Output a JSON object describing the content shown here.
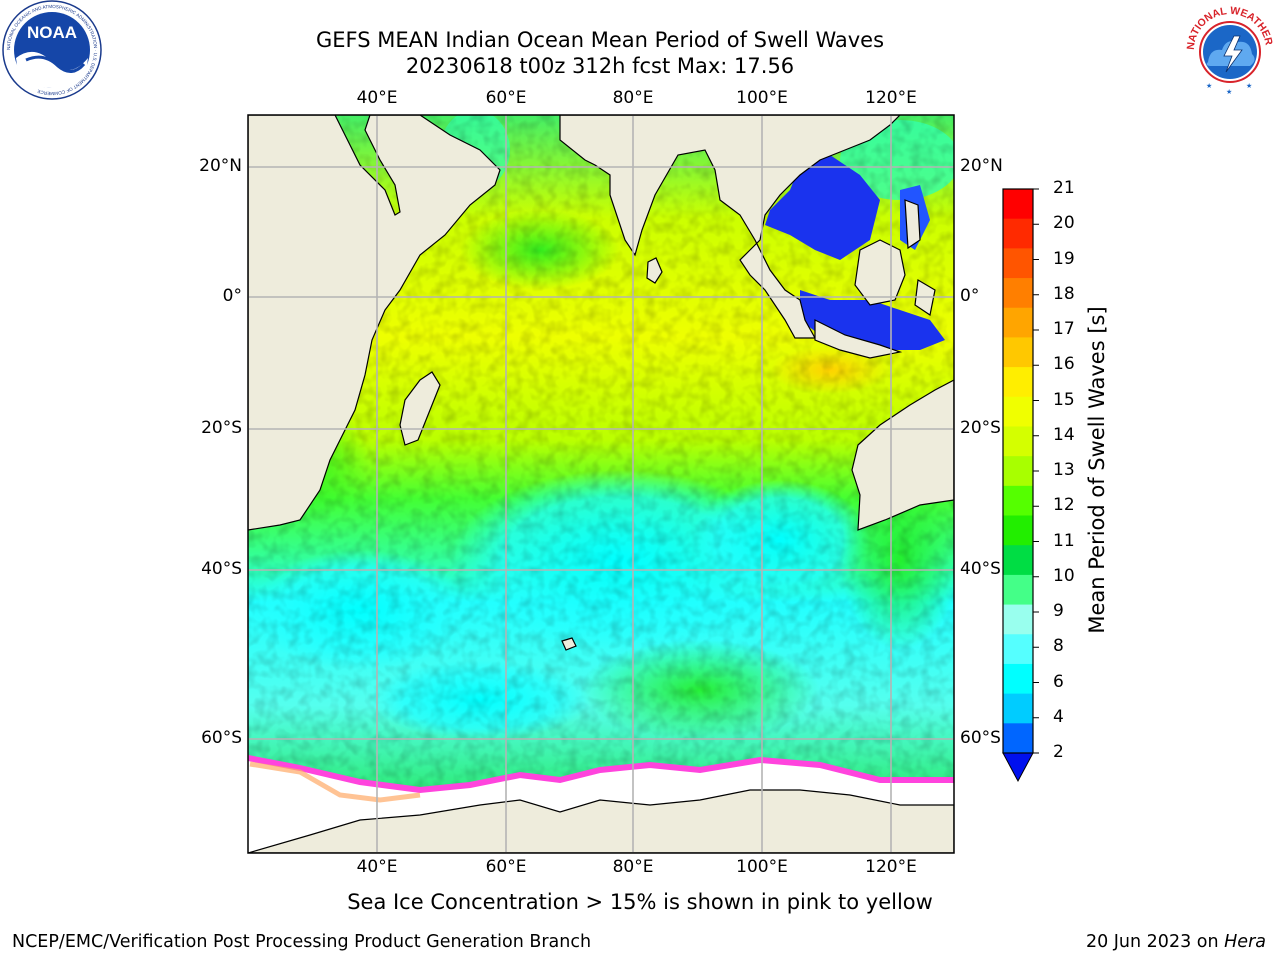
{
  "title": {
    "line1": "GEFS MEAN Indian Ocean Mean Period of Swell Waves",
    "line2": "20230618 t00z 312h fcst   Max: 17.56"
  },
  "logos": {
    "left": {
      "name": "noaa-logo",
      "text": "NOAA",
      "ring_text": "NATIONAL OCEANIC AND ATMOSPHERIC ADMINISTRATION · U.S. DEPARTMENT OF COMMERCE"
    },
    "right": {
      "name": "nws-logo",
      "ring_text": "NATIONAL WEATHER SERVICE"
    }
  },
  "map": {
    "region": "Indian Ocean",
    "lon_ticks": [
      "40°E",
      "60°E",
      "80°E",
      "100°E",
      "120°E"
    ],
    "lat_ticks_left": [
      "20°N",
      "0°",
      "20°S",
      "40°S",
      "60°S"
    ],
    "lat_ticks_right": [
      "20°N",
      "0°",
      "20°S",
      "40°S",
      "60°S"
    ],
    "land_color": "#eeecdc",
    "ice_color": "#ffffff",
    "grid_color": "#b4b4b4"
  },
  "colorbar": {
    "title": "Mean Period of Swell Waves [s]",
    "labels": [
      "21",
      "20",
      "19",
      "18",
      "17",
      "16",
      "15",
      "14",
      "13",
      "12",
      "11",
      "10",
      "9",
      "8",
      "6",
      "4",
      "2"
    ],
    "colors": [
      "#ff0000",
      "#ff2a00",
      "#ff5500",
      "#ff7f00",
      "#ffa500",
      "#ffc800",
      "#ffee00",
      "#f0ff00",
      "#d4ff00",
      "#a8ff00",
      "#55ff00",
      "#22ee00",
      "#00dd44",
      "#44ff88",
      "#99ffee",
      "#55ffff",
      "#00ffff",
      "#00ccff",
      "#0066ff"
    ],
    "extend_color": "#0010ee"
  },
  "caption": "Sea Ice Concentration > 15% is shown in pink to yellow",
  "footer": {
    "left": "NCEP/EMC/Verification Post Processing Product Generation Branch",
    "right_date": "20 Jun 2023 on ",
    "right_host": "Hera"
  }
}
